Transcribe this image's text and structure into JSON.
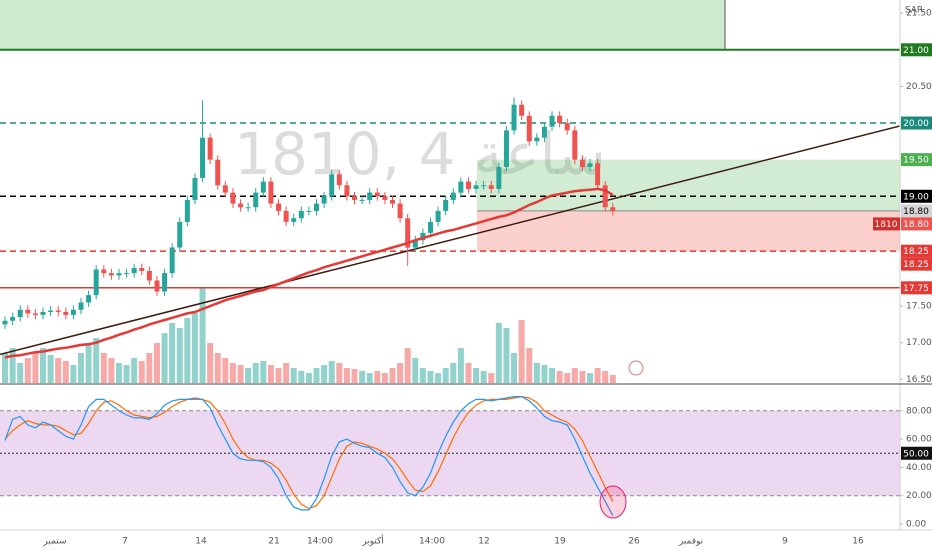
{
  "chart_data": {
    "type": "candlestick",
    "watermark": "1810, 4 ساعة",
    "currency": "SAR",
    "up_color": "#26a69a",
    "down_color": "#ef5350",
    "ma_color": "#e53935",
    "xlim": [
      -0.66,
      117.8
    ],
    "ylim": [
      16.45,
      21.68
    ],
    "yticks": [
      {
        "value": 21.5,
        "label": "21.50"
      },
      {
        "value": 20.5,
        "label": "20.50"
      },
      {
        "value": 17.5,
        "label": "17.50"
      },
      {
        "value": 17,
        "label": "17.00"
      },
      {
        "value": 16.5,
        "label": "16.50"
      }
    ],
    "x_labels": [
      "ستمبر",
      "7",
      "14",
      "21",
      "14:00",
      "أكتوبر",
      "14:00",
      "12",
      "19",
      "26",
      "نوفمبر",
      "9",
      "16"
    ],
    "open": [
      17.25,
      17.3,
      17.35,
      17.45,
      17.4,
      17.38,
      17.42,
      17.44,
      17.42,
      17.38,
      17.45,
      17.55,
      17.65,
      18.0,
      17.95,
      17.92,
      17.95,
      17.95,
      18.02,
      17.98,
      17.85,
      17.7,
      17.95,
      18.3,
      18.65,
      18.95,
      19.25,
      19.8,
      19.5,
      19.15,
      19.05,
      18.9,
      18.85,
      18.85,
      19.05,
      19.2,
      18.9,
      18.8,
      18.65,
      18.7,
      18.8,
      18.8,
      18.9,
      19.0,
      19.3,
      19.15,
      19.0,
      18.95,
      18.95,
      19.05,
      19.0,
      18.95,
      18.9,
      18.7,
      18.3,
      18.4,
      18.5,
      18.65,
      18.8,
      18.95,
      19.05,
      19.2,
      19.1,
      19.15,
      19.15,
      19.1,
      19.4,
      19.9,
      20.25,
      20.1,
      19.75,
      19.8,
      19.95,
      20.1,
      20.0,
      19.9,
      19.5,
      19.4,
      19.45,
      19.15,
      18.85
    ],
    "high": [
      17.36,
      17.41,
      17.51,
      17.51,
      17.46,
      17.48,
      17.5,
      17.5,
      17.48,
      17.51,
      17.61,
      17.71,
      18.06,
      18.06,
      18.01,
      18.01,
      18.01,
      18.08,
      18.08,
      18.04,
      17.91,
      18.01,
      18.36,
      18.71,
      19.01,
      19.31,
      20.31,
      19.86,
      19.56,
      19.21,
      19.11,
      18.96,
      18.91,
      19.11,
      19.26,
      19.26,
      18.96,
      18.86,
      18.76,
      18.86,
      18.86,
      18.96,
      19.06,
      19.36,
      19.36,
      19.21,
      19.06,
      19.01,
      19.11,
      19.11,
      19.06,
      19.01,
      18.96,
      18.76,
      18.46,
      18.56,
      18.71,
      18.86,
      19.01,
      19.11,
      19.26,
      19.26,
      19.21,
      19.21,
      19.21,
      19.46,
      19.96,
      20.35,
      20.31,
      20.16,
      19.86,
      20.01,
      20.16,
      20.16,
      20.06,
      19.96,
      19.56,
      19.51,
      19.51,
      19.21,
      18.91
    ],
    "low": [
      17.19,
      17.24,
      17.29,
      17.34,
      17.32,
      17.32,
      17.36,
      17.36,
      17.32,
      17.32,
      17.39,
      17.49,
      17.59,
      17.89,
      17.86,
      17.86,
      17.89,
      17.89,
      17.92,
      17.79,
      17.64,
      17.64,
      17.89,
      18.24,
      18.59,
      18.89,
      19.19,
      19.44,
      19.09,
      18.99,
      18.84,
      18.79,
      18.79,
      18.79,
      18.99,
      18.84,
      18.74,
      18.59,
      18.59,
      18.64,
      18.74,
      18.74,
      18.84,
      18.94,
      19.09,
      18.94,
      18.89,
      18.89,
      18.89,
      18.94,
      18.89,
      18.84,
      18.64,
      18.05,
      18.24,
      18.34,
      18.44,
      18.59,
      18.74,
      18.89,
      18.99,
      19.04,
      19.04,
      19.09,
      19.04,
      19.04,
      19.34,
      19.84,
      20.04,
      19.69,
      19.69,
      19.74,
      19.89,
      19.94,
      19.84,
      19.44,
      19.34,
      19.34,
      19.09,
      18.79,
      18.74
    ],
    "close": [
      17.3,
      17.35,
      17.45,
      17.4,
      17.38,
      17.42,
      17.44,
      17.42,
      17.38,
      17.45,
      17.55,
      17.65,
      18.0,
      17.95,
      17.92,
      17.95,
      17.95,
      18.02,
      17.98,
      17.85,
      17.7,
      17.95,
      18.3,
      18.65,
      18.95,
      19.25,
      19.8,
      19.5,
      19.15,
      19.05,
      18.9,
      18.85,
      18.85,
      19.05,
      19.2,
      18.9,
      18.8,
      18.65,
      18.7,
      18.8,
      18.8,
      18.9,
      19.0,
      19.3,
      19.15,
      19.0,
      18.95,
      18.95,
      19.05,
      19.0,
      18.95,
      18.9,
      18.7,
      18.3,
      18.4,
      18.5,
      18.65,
      18.8,
      18.95,
      19.05,
      19.2,
      19.1,
      19.15,
      19.15,
      19.1,
      19.4,
      19.9,
      20.25,
      20.1,
      19.75,
      19.8,
      19.95,
      20.1,
      20.0,
      19.9,
      19.5,
      19.4,
      19.45,
      19.15,
      18.85,
      18.8
    ],
    "volume": [
      30,
      35,
      20,
      25,
      30,
      35,
      28,
      25,
      22,
      18,
      30,
      40,
      45,
      30,
      25,
      20,
      18,
      25,
      22,
      30,
      40,
      50,
      60,
      55,
      65,
      70,
      95,
      40,
      30,
      25,
      20,
      18,
      15,
      20,
      22,
      18,
      15,
      20,
      15,
      12,
      10,
      15,
      18,
      22,
      20,
      15,
      14,
      12,
      10,
      12,
      10,
      15,
      20,
      35,
      25,
      15,
      12,
      10,
      15,
      20,
      35,
      20,
      15,
      12,
      10,
      60,
      55,
      30,
      63,
      35,
      20,
      18,
      15,
      12,
      10,
      15,
      12,
      10,
      15,
      12,
      8
    ],
    "ma": [
      16.8,
      16.82,
      16.83,
      16.85,
      16.87,
      16.88,
      16.9,
      16.92,
      16.93,
      16.95,
      16.97,
      16.98,
      17.0,
      17.04,
      17.07,
      17.11,
      17.14,
      17.18,
      17.21,
      17.25,
      17.28,
      17.31,
      17.34,
      17.37,
      17.4,
      17.42,
      17.46,
      17.5,
      17.54,
      17.58,
      17.61,
      17.64,
      17.67,
      17.7,
      17.72,
      17.76,
      17.8,
      17.84,
      17.88,
      17.92,
      17.96,
      17.99,
      18.03,
      18.06,
      18.09,
      18.12,
      18.15,
      18.18,
      18.21,
      18.24,
      18.27,
      18.3,
      18.33,
      18.36,
      18.4,
      18.43,
      18.46,
      18.49,
      18.52,
      18.54,
      18.57,
      18.6,
      18.63,
      18.66,
      18.69,
      18.72,
      18.74,
      18.78,
      18.83,
      18.88,
      18.92,
      18.97,
      19.01,
      19.03,
      19.05,
      19.07,
      19.08,
      19.09,
      19.1,
      19.08,
      19.02
    ],
    "trendline": [
      16.84,
      19.96
    ],
    "resistance_zone": {
      "value": 21,
      "label": "21.00",
      "color": "#1e7b1e"
    },
    "levels": [
      {
        "value": 20,
        "label": "20.00",
        "color": "#1a8a7a",
        "dashed": true
      },
      {
        "value": 19,
        "label": "19.00",
        "color": "#000000",
        "dashed": true
      },
      {
        "value": 18.25,
        "label": "18.25",
        "color": "#e53935",
        "dashed": true
      },
      {
        "value": 17.75,
        "label": "17.75",
        "color": "#e53935",
        "dashed": false
      }
    ],
    "position": {
      "target": {
        "value": 19.5,
        "label": "19.50"
      },
      "entry": {
        "value": 18.8,
        "label": "18.80"
      },
      "stop": {
        "value": 18.25,
        "label": "18.25"
      }
    },
    "last_price": {
      "value": 18.8,
      "label": "18.80",
      "symbol": "1810"
    },
    "stochastic": {
      "ylim": [
        -4.2,
        98.2
      ],
      "yticks": [
        {
          "value": 80,
          "label": "80.00"
        },
        {
          "value": 60,
          "label": "60.00"
        },
        {
          "value": 40,
          "label": "40.00"
        },
        {
          "value": 20,
          "label": "20.00"
        },
        {
          "value": 0,
          "label": "0.00"
        }
      ],
      "bands": [
        20,
        80
      ],
      "mid": {
        "value": 50,
        "label": "50.00"
      },
      "k_color": "#2196f3",
      "d_color": "#ff6d00",
      "k": [
        59,
        74,
        76,
        70,
        68,
        72,
        70,
        66,
        62,
        60,
        70,
        83,
        88,
        88,
        84,
        80,
        77,
        75,
        75,
        74,
        78,
        84,
        87,
        88,
        88,
        89,
        88,
        82,
        70,
        60,
        50,
        46,
        45,
        45,
        44,
        40,
        32,
        20,
        12,
        10,
        10,
        18,
        32,
        48,
        58,
        60,
        57,
        55,
        54,
        50,
        47,
        40,
        30,
        22,
        20,
        26,
        36,
        50,
        62,
        72,
        80,
        85,
        88,
        88,
        87,
        88,
        89,
        90,
        90,
        87,
        82,
        76,
        73,
        72,
        70,
        60,
        48,
        36,
        26,
        16,
        6
      ],
      "d": [
        60,
        66,
        70,
        73,
        71,
        70,
        70,
        69,
        66,
        63,
        64,
        71,
        80,
        86,
        87,
        84,
        80,
        77,
        76,
        75,
        76,
        79,
        83,
        86,
        88,
        88,
        88,
        86,
        80,
        71,
        60,
        52,
        47,
        45,
        45,
        43,
        39,
        31,
        21,
        14,
        11,
        13,
        20,
        33,
        46,
        55,
        58,
        57,
        55,
        53,
        50,
        46,
        39,
        31,
        24,
        23,
        27,
        37,
        49,
        61,
        71,
        79,
        84,
        87,
        88,
        88,
        88,
        89,
        90,
        89,
        86,
        80,
        77,
        74,
        72,
        67,
        59,
        48,
        37,
        26,
        16
      ]
    }
  }
}
